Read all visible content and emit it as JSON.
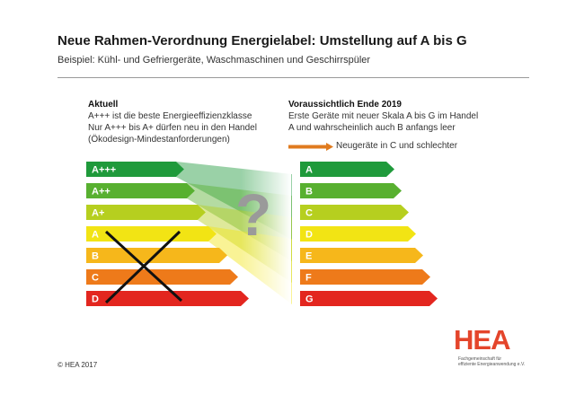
{
  "header": {
    "title": "Neue Rahmen-Verordnung Energielabel: Umstellung auf A bis G",
    "subtitle": "Beispiel: Kühl- und Gefriergeräte, Waschmaschinen und Geschirrspüler"
  },
  "current": {
    "heading": "Aktuell",
    "lines": [
      "A+++ ist die beste Energieeffizienzklasse",
      "Nur  A+++ bis A+ dürfen neu in den Handel",
      "(Ökodesign-Mindestanforderungen)"
    ],
    "classes": [
      {
        "label": "A+++",
        "color": "#1f9a3b"
      },
      {
        "label": "A++",
        "color": "#58b030"
      },
      {
        "label": "A+",
        "color": "#b6cf1f"
      },
      {
        "label": "A",
        "color": "#f2e414"
      },
      {
        "label": "B",
        "color": "#f6b71b"
      },
      {
        "label": "C",
        "color": "#ee7a1a"
      },
      {
        "label": "D",
        "color": "#e3261f"
      }
    ]
  },
  "future": {
    "heading": "Voraussichtlich Ende 2019",
    "lines": [
      "Erste Geräte mit neuer Skala A bis G im Handel",
      "A und wahrscheinlich auch B anfangs leer"
    ],
    "legend": "Neugeräte in C und schlechter",
    "classes": [
      {
        "label": "A",
        "color": "#1f9a3b"
      },
      {
        "label": "B",
        "color": "#58b030"
      },
      {
        "label": "C",
        "color": "#b6cf1f"
      },
      {
        "label": "D",
        "color": "#f2e414"
      },
      {
        "label": "E",
        "color": "#f6b71b"
      },
      {
        "label": "F",
        "color": "#ee7a1a"
      },
      {
        "label": "G",
        "color": "#e3261f"
      }
    ]
  },
  "question_mark": "?",
  "footer": {
    "copyright": "© HEA 2017",
    "logo": "HEA",
    "logo_sub1": "Fachgemeinschaft für",
    "logo_sub2": "effiziente Energieanwendung e.V."
  },
  "colors": {
    "legend_arrow": "#e07b1f",
    "cross": "#111111",
    "logo": "#e4452b"
  }
}
